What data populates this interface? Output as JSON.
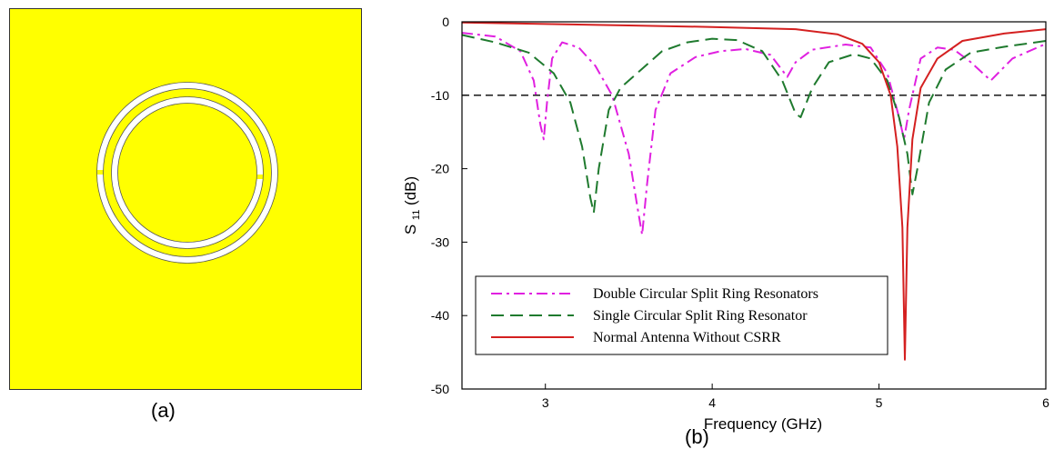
{
  "panels": {
    "a_label": "(a)",
    "b_label": "(b)"
  },
  "figure_a": {
    "background": "#ffff00",
    "ring_fill": "#ffffff",
    "border": "#333333"
  },
  "chart_data": {
    "type": "line",
    "xlabel": "Frequency (GHz)",
    "ylabel": {
      "main": "S",
      "sub": "11",
      "unit": " (dB)"
    },
    "xlim": [
      2.5,
      6
    ],
    "ylim": [
      -50,
      0
    ],
    "x_ticks": [
      3,
      4,
      5,
      6
    ],
    "y_ticks": [
      0,
      -10,
      -20,
      -30,
      -40,
      -50
    ],
    "x_tick_labels": [
      "3",
      "4",
      "5",
      "6"
    ],
    "y_tick_labels": [
      "0",
      "-10",
      "-20",
      "-30",
      "-40",
      "-50"
    ],
    "threshold": {
      "y": -10,
      "color": "#000000"
    },
    "legend": {
      "position": "bottom-left"
    },
    "series": [
      {
        "name": "Double Circular Split Ring Resonators",
        "color": "#e020e0",
        "style": "dashdot",
        "points": [
          [
            2.5,
            -1.5
          ],
          [
            2.7,
            -2
          ],
          [
            2.85,
            -4
          ],
          [
            2.93,
            -8
          ],
          [
            2.97,
            -14
          ],
          [
            2.99,
            -16
          ],
          [
            3.01,
            -11
          ],
          [
            3.04,
            -5
          ],
          [
            3.1,
            -2.8
          ],
          [
            3.2,
            -3.5
          ],
          [
            3.3,
            -6
          ],
          [
            3.4,
            -10
          ],
          [
            3.5,
            -18
          ],
          [
            3.55,
            -25
          ],
          [
            3.58,
            -29
          ],
          [
            3.61,
            -22
          ],
          [
            3.66,
            -12
          ],
          [
            3.75,
            -7
          ],
          [
            3.9,
            -4.8
          ],
          [
            4.05,
            -4
          ],
          [
            4.2,
            -3.7
          ],
          [
            4.35,
            -4.5
          ],
          [
            4.45,
            -7.5
          ],
          [
            4.5,
            -5.5
          ],
          [
            4.6,
            -3.8
          ],
          [
            4.8,
            -3.1
          ],
          [
            4.95,
            -3.5
          ],
          [
            5.05,
            -7
          ],
          [
            5.12,
            -13
          ],
          [
            5.15,
            -16
          ],
          [
            5.18,
            -12
          ],
          [
            5.25,
            -5
          ],
          [
            5.35,
            -3.5
          ],
          [
            5.45,
            -3.8
          ],
          [
            5.55,
            -5.5
          ],
          [
            5.67,
            -8
          ],
          [
            5.8,
            -5
          ],
          [
            6.0,
            -3
          ]
        ]
      },
      {
        "name": "Single Circular Split Ring Resonator",
        "color": "#1f7a2e",
        "style": "dashed",
        "points": [
          [
            2.5,
            -1.8
          ],
          [
            2.7,
            -2.8
          ],
          [
            2.9,
            -4.2
          ],
          [
            3.05,
            -7
          ],
          [
            3.15,
            -11
          ],
          [
            3.22,
            -17
          ],
          [
            3.27,
            -24
          ],
          [
            3.29,
            -26
          ],
          [
            3.32,
            -20
          ],
          [
            3.38,
            -12
          ],
          [
            3.45,
            -9
          ],
          [
            3.55,
            -7
          ],
          [
            3.7,
            -4
          ],
          [
            3.85,
            -2.8
          ],
          [
            4.0,
            -2.3
          ],
          [
            4.15,
            -2.5
          ],
          [
            4.3,
            -4
          ],
          [
            4.42,
            -8
          ],
          [
            4.5,
            -12.5
          ],
          [
            4.53,
            -13
          ],
          [
            4.6,
            -9
          ],
          [
            4.7,
            -5.5
          ],
          [
            4.85,
            -4.4
          ],
          [
            4.95,
            -5
          ],
          [
            5.05,
            -8
          ],
          [
            5.12,
            -13
          ],
          [
            5.17,
            -18
          ],
          [
            5.2,
            -23.5
          ],
          [
            5.23,
            -20
          ],
          [
            5.3,
            -11
          ],
          [
            5.4,
            -6.5
          ],
          [
            5.55,
            -4.2
          ],
          [
            5.75,
            -3.4
          ],
          [
            6.0,
            -2.6
          ]
        ]
      },
      {
        "name": "Normal Antenna Without CSRR",
        "color": "#d42020",
        "style": "solid",
        "points": [
          [
            2.5,
            -0.1
          ],
          [
            3.0,
            -0.3
          ],
          [
            3.5,
            -0.5
          ],
          [
            4.0,
            -0.7
          ],
          [
            4.5,
            -1
          ],
          [
            4.75,
            -1.7
          ],
          [
            4.9,
            -3
          ],
          [
            5.0,
            -5.5
          ],
          [
            5.07,
            -10
          ],
          [
            5.11,
            -17
          ],
          [
            5.14,
            -28
          ],
          [
            5.155,
            -46
          ],
          [
            5.17,
            -28
          ],
          [
            5.2,
            -16
          ],
          [
            5.25,
            -9
          ],
          [
            5.35,
            -5
          ],
          [
            5.5,
            -2.6
          ],
          [
            5.75,
            -1.6
          ],
          [
            6.0,
            -1.0
          ]
        ]
      }
    ]
  }
}
